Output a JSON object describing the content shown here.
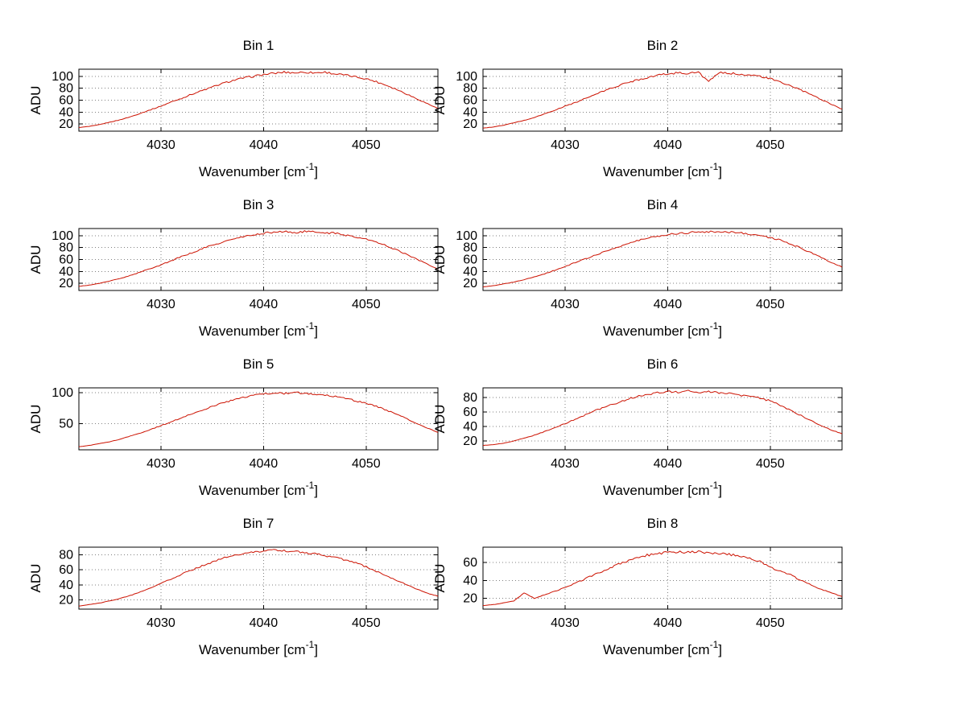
{
  "chart_data": {
    "type": "line",
    "xlabel": "Wavenumber [cm⁻¹]",
    "ylabel": "ADU",
    "xlim": [
      4022,
      4057
    ],
    "xticks": [
      4030,
      4040,
      4050
    ],
    "grid": true,
    "legend": "none",
    "line_color": "#cc1100",
    "charts": [
      {
        "title": "Bin 1",
        "ylim": [
          8,
          112
        ],
        "yticks": [
          20,
          40,
          60,
          80,
          100
        ],
        "noise": 1.8,
        "x_start": 4022,
        "x_step": 1,
        "y": [
          14,
          16,
          19,
          23,
          27,
          32,
          38,
          44,
          50,
          57,
          63,
          70,
          76,
          82,
          88,
          93,
          97,
          100,
          103,
          105,
          107,
          106,
          107,
          106,
          107,
          104,
          102,
          99,
          96,
          91,
          85,
          78,
          70,
          62,
          54,
          46
        ]
      },
      {
        "title": "Bin 2",
        "ylim": [
          8,
          112
        ],
        "yticks": [
          20,
          40,
          60,
          80,
          100
        ],
        "noise": 1.8,
        "x_start": 4022,
        "x_step": 1,
        "y": [
          13,
          15,
          18,
          22,
          26,
          31,
          37,
          43,
          50,
          56,
          63,
          70,
          77,
          83,
          89,
          94,
          98,
          102,
          104,
          106,
          105,
          107,
          91,
          106,
          105,
          104,
          102,
          100,
          96,
          90,
          84,
          77,
          69,
          61,
          53,
          45
        ]
      },
      {
        "title": "Bin 3",
        "ylim": [
          8,
          112
        ],
        "yticks": [
          20,
          40,
          60,
          80,
          100
        ],
        "noise": 1.8,
        "x_start": 4022,
        "x_step": 1,
        "y": [
          15,
          17,
          20,
          24,
          28,
          33,
          39,
          45,
          51,
          58,
          65,
          71,
          78,
          84,
          89,
          94,
          98,
          101,
          104,
          106,
          107,
          105,
          107,
          106,
          105,
          104,
          101,
          98,
          94,
          89,
          83,
          76,
          68,
          60,
          52,
          44
        ]
      },
      {
        "title": "Bin 4",
        "ylim": [
          8,
          112
        ],
        "yticks": [
          20,
          40,
          60,
          80,
          100
        ],
        "noise": 1.8,
        "x_start": 4022,
        "x_step": 1,
        "y": [
          14,
          16,
          19,
          22,
          26,
          31,
          36,
          42,
          48,
          55,
          61,
          68,
          74,
          80,
          86,
          91,
          96,
          99,
          102,
          104,
          105,
          107,
          106,
          107,
          106,
          105,
          103,
          100,
          97,
          92,
          86,
          79,
          71,
          63,
          55,
          47
        ]
      },
      {
        "title": "Bin 5",
        "ylim": [
          8,
          108
        ],
        "yticks": [
          50,
          100
        ],
        "noise": 1.5,
        "x_start": 4022,
        "x_step": 1,
        "y": [
          13,
          15,
          18,
          21,
          25,
          30,
          35,
          41,
          47,
          53,
          60,
          66,
          72,
          78,
          84,
          88,
          92,
          96,
          98,
          100,
          99,
          101,
          99,
          98,
          96,
          94,
          91,
          87,
          83,
          78,
          72,
          65,
          58,
          50,
          43,
          36
        ]
      },
      {
        "title": "Bin 6",
        "ylim": [
          8,
          93
        ],
        "yticks": [
          20,
          40,
          60,
          80
        ],
        "noise": 1.5,
        "x_start": 4022,
        "x_step": 1,
        "y": [
          14,
          15,
          17,
          20,
          24,
          28,
          33,
          38,
          44,
          50,
          56,
          62,
          67,
          72,
          77,
          81,
          84,
          86,
          88,
          87,
          89,
          87,
          88,
          86,
          85,
          83,
          81,
          79,
          75,
          69,
          62,
          55,
          48,
          41,
          35,
          30
        ]
      },
      {
        "title": "Bin 7",
        "ylim": [
          8,
          90
        ],
        "yticks": [
          20,
          40,
          60,
          80
        ],
        "noise": 1.5,
        "x_start": 4022,
        "x_step": 1,
        "y": [
          12,
          14,
          16,
          19,
          22,
          26,
          31,
          36,
          42,
          48,
          54,
          60,
          65,
          70,
          75,
          79,
          82,
          84,
          85,
          86,
          85,
          84,
          83,
          81,
          79,
          76,
          73,
          69,
          64,
          58,
          52,
          46,
          40,
          34,
          29,
          25
        ]
      },
      {
        "title": "Bin 8",
        "ylim": [
          8,
          77
        ],
        "yticks": [
          20,
          40,
          60
        ],
        "noise": 1.5,
        "x_start": 4022,
        "x_step": 1,
        "y": [
          12,
          13,
          15,
          17,
          26,
          20,
          24,
          28,
          32,
          37,
          42,
          47,
          52,
          57,
          61,
          65,
          68,
          70,
          71,
          72,
          71,
          72,
          71,
          70,
          69,
          67,
          64,
          61,
          55,
          50,
          46,
          40,
          35,
          30,
          26,
          22
        ]
      }
    ]
  }
}
